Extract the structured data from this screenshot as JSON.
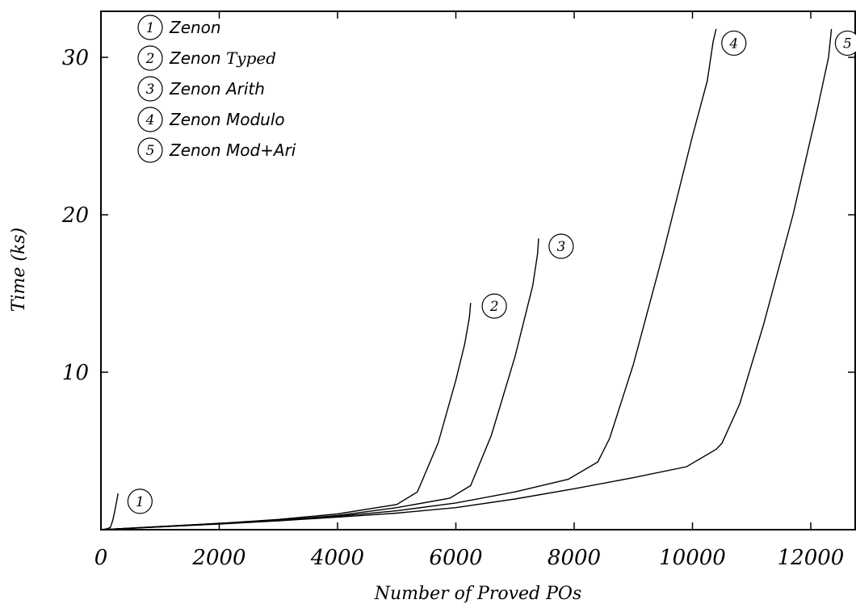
{
  "chart_data": {
    "type": "line",
    "xlabel": "Number of Proved POs",
    "ylabel": "Time (ks)",
    "xlim": [
      0,
      12800
    ],
    "ylim": [
      0,
      32.5
    ],
    "xticks": [
      "0",
      "2000",
      "4000",
      "6000",
      "8000",
      "10000",
      "12000"
    ],
    "xtick_values": [
      0,
      2000,
      4000,
      6000,
      8000,
      10000,
      12000
    ],
    "yticks": [
      "10",
      "20",
      "30"
    ],
    "ytick_values": [
      10,
      20,
      30
    ],
    "grid": false,
    "legend_position": "top-left",
    "series": [
      {
        "id": "1",
        "name": "Zenon",
        "label_parts": [
          {
            "text": "Zenon",
            "font": "sans"
          }
        ],
        "x": [
          0,
          100,
          160,
          200,
          240,
          270,
          290
        ],
        "y": [
          0,
          0.05,
          0.15,
          0.6,
          1.3,
          1.9,
          2.3
        ]
      },
      {
        "id": "2",
        "name": "Zenon Typed",
        "label_parts": [
          {
            "text": "Zenon",
            "font": "sans"
          },
          {
            "text": " Typed",
            "font": "serif"
          }
        ],
        "x": [
          0,
          1000,
          2000,
          3000,
          4000,
          5000,
          5350,
          5700,
          6000,
          6150,
          6230,
          6250
        ],
        "y": [
          0,
          0.2,
          0.4,
          0.65,
          1.0,
          1.6,
          2.4,
          5.5,
          9.5,
          11.8,
          13.5,
          14.4
        ]
      },
      {
        "id": "3",
        "name": "Zenon Arith",
        "label_parts": [
          {
            "text": "Zenon Arith",
            "font": "sans"
          }
        ],
        "x": [
          0,
          1000,
          2000,
          3000,
          4000,
          5000,
          5900,
          6250,
          6600,
          7000,
          7300,
          7380,
          7400
        ],
        "y": [
          0,
          0.2,
          0.4,
          0.6,
          0.9,
          1.4,
          2.0,
          2.8,
          6.0,
          11.0,
          15.5,
          17.5,
          18.5
        ]
      },
      {
        "id": "4",
        "name": "Zenon Modulo",
        "label_parts": [
          {
            "text": "Zenon Modulo",
            "font": "sans"
          }
        ],
        "x": [
          0,
          1000,
          2000,
          3000,
          4000,
          5000,
          6000,
          7000,
          7900,
          8400,
          8600,
          9000,
          9500,
          10000,
          10250,
          10350,
          10400
        ],
        "y": [
          0,
          0.18,
          0.38,
          0.6,
          0.85,
          1.2,
          1.7,
          2.4,
          3.2,
          4.3,
          5.8,
          10.5,
          17.5,
          25.0,
          28.5,
          31.0,
          31.8
        ]
      },
      {
        "id": "5",
        "name": "Zenon Mod+Ari",
        "label_parts": [
          {
            "text": "Zenon Mod+Ari",
            "font": "sans"
          }
        ],
        "x": [
          0,
          1000,
          2000,
          3000,
          4000,
          5000,
          6000,
          7000,
          8000,
          9000,
          9900,
          10400,
          10500,
          10800,
          11200,
          11700,
          12100,
          12300,
          12350
        ],
        "y": [
          0,
          0.18,
          0.36,
          0.56,
          0.8,
          1.05,
          1.4,
          1.95,
          2.6,
          3.3,
          4.0,
          5.1,
          5.5,
          8.0,
          13.0,
          20.0,
          26.5,
          30.0,
          31.8
        ]
      }
    ],
    "annotations": [
      {
        "text": "1",
        "x": 660,
        "y": 1.8
      },
      {
        "text": "2",
        "x": 6650,
        "y": 14.2
      },
      {
        "text": "3",
        "x": 7780,
        "y": 18.0
      },
      {
        "text": "4",
        "x": 10700,
        "y": 30.9
      },
      {
        "text": "5",
        "x": 12620,
        "y": 30.9
      }
    ]
  }
}
